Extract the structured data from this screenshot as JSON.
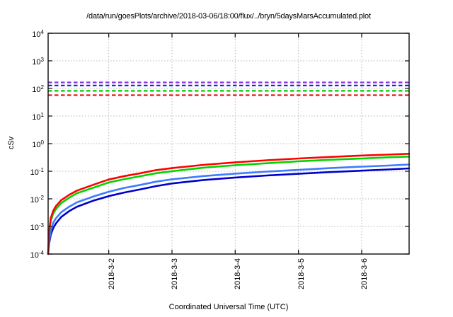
{
  "title": "/data/run/goesPlots/archive/2018-03-06/18:00/flux/../bryn/5daysMarsAccumulated.plot",
  "chart_data": {
    "type": "line",
    "title": "/data/run/goesPlots/archive/2018-03-06/18:00/flux/../bryn/5daysMarsAccumulated.plot",
    "xlabel": "Coordinated Universal Time (UTC)",
    "ylabel": "cSv",
    "x_unit": "hours since 2018-03-01 00:00 UTC",
    "x_range": [
      1,
      138
    ],
    "y_scale": "log10",
    "y_range": [
      0.0001,
      10000
    ],
    "grid": true,
    "legend": "none",
    "x_ticks": [
      {
        "t": 24,
        "label": "2018-3-2"
      },
      {
        "t": 48,
        "label": "2018-3-3"
      },
      {
        "t": 72,
        "label": "2018-3-4"
      },
      {
        "t": 96,
        "label": "2018-3-5"
      },
      {
        "t": 120,
        "label": "2018-3-6"
      }
    ],
    "y_ticks": [
      {
        "value": 10000,
        "base": "10",
        "exp": "4"
      },
      {
        "value": 1000,
        "base": "10",
        "exp": "3"
      },
      {
        "value": 100,
        "base": "10",
        "exp": "2"
      },
      {
        "value": 10,
        "base": "10",
        "exp": "1"
      },
      {
        "value": 1,
        "base": "10",
        "exp": "0"
      },
      {
        "value": 0.1,
        "base": "10",
        "exp": "-1"
      },
      {
        "value": 0.01,
        "base": "10",
        "exp": "-2"
      },
      {
        "value": 0.001,
        "base": "10",
        "exp": "-3"
      },
      {
        "value": 0.0001,
        "base": "10",
        "exp": "-4"
      }
    ],
    "reference_lines": [
      {
        "name": "limit-line-purple",
        "value": 165,
        "color": "#8833e0",
        "style": "dashed"
      },
      {
        "name": "limit-line-blue",
        "value": 128,
        "color": "#1a1aee",
        "style": "dashed"
      },
      {
        "name": "limit-line-green",
        "value": 82,
        "color": "#00cc00",
        "style": "dashed"
      },
      {
        "name": "limit-line-red",
        "value": 57,
        "color": "#ee1111",
        "style": "dashed"
      }
    ],
    "series": [
      {
        "name": "accumulated-dose-blue",
        "color": "#0000cc",
        "points": [
          [
            1,
            0.0001
          ],
          [
            1.4,
            0.00025
          ],
          [
            2,
            0.0005
          ],
          [
            3,
            0.0009
          ],
          [
            4,
            0.0013
          ],
          [
            6,
            0.0022
          ],
          [
            9,
            0.0036
          ],
          [
            12,
            0.0052
          ],
          [
            18,
            0.0085
          ],
          [
            24,
            0.0125
          ],
          [
            30,
            0.017
          ],
          [
            36,
            0.022
          ],
          [
            42,
            0.029
          ],
          [
            48,
            0.036
          ],
          [
            60,
            0.048
          ],
          [
            72,
            0.059
          ],
          [
            84,
            0.07
          ],
          [
            96,
            0.081
          ],
          [
            108,
            0.093
          ],
          [
            120,
            0.105
          ],
          [
            130,
            0.116
          ],
          [
            138,
            0.127
          ]
        ]
      },
      {
        "name": "accumulated-dose-lightblue",
        "color": "#3d7bff",
        "points": [
          [
            1,
            0.0001
          ],
          [
            1.4,
            0.0003
          ],
          [
            2,
            0.0007
          ],
          [
            3,
            0.0014
          ],
          [
            4,
            0.002
          ],
          [
            6,
            0.0033
          ],
          [
            9,
            0.0052
          ],
          [
            12,
            0.0075
          ],
          [
            18,
            0.012
          ],
          [
            24,
            0.018
          ],
          [
            30,
            0.025
          ],
          [
            36,
            0.032
          ],
          [
            42,
            0.042
          ],
          [
            48,
            0.051
          ],
          [
            60,
            0.067
          ],
          [
            72,
            0.082
          ],
          [
            84,
            0.097
          ],
          [
            96,
            0.112
          ],
          [
            108,
            0.13
          ],
          [
            120,
            0.147
          ],
          [
            130,
            0.16
          ],
          [
            138,
            0.175
          ]
        ]
      },
      {
        "name": "accumulated-dose-green",
        "color": "#00d400",
        "points": [
          [
            1,
            0.0001
          ],
          [
            1.4,
            0.0006
          ],
          [
            2,
            0.0016
          ],
          [
            3,
            0.003
          ],
          [
            4,
            0.0043
          ],
          [
            6,
            0.007
          ],
          [
            9,
            0.011
          ],
          [
            12,
            0.016
          ],
          [
            18,
            0.025
          ],
          [
            24,
            0.039
          ],
          [
            30,
            0.052
          ],
          [
            36,
            0.066
          ],
          [
            42,
            0.085
          ],
          [
            48,
            0.1
          ],
          [
            60,
            0.135
          ],
          [
            72,
            0.165
          ],
          [
            84,
            0.195
          ],
          [
            96,
            0.23
          ],
          [
            108,
            0.26
          ],
          [
            120,
            0.29
          ],
          [
            130,
            0.32
          ],
          [
            138,
            0.34
          ]
        ]
      },
      {
        "name": "accumulated-dose-red",
        "color": "#ff0000",
        "points": [
          [
            1,
            0.0001
          ],
          [
            1.4,
            0.0007
          ],
          [
            2,
            0.002
          ],
          [
            3,
            0.0038
          ],
          [
            4,
            0.0055
          ],
          [
            6,
            0.009
          ],
          [
            9,
            0.014
          ],
          [
            12,
            0.02
          ],
          [
            18,
            0.032
          ],
          [
            24,
            0.05
          ],
          [
            30,
            0.067
          ],
          [
            36,
            0.085
          ],
          [
            42,
            0.11
          ],
          [
            48,
            0.13
          ],
          [
            60,
            0.17
          ],
          [
            72,
            0.21
          ],
          [
            84,
            0.25
          ],
          [
            96,
            0.29
          ],
          [
            108,
            0.33
          ],
          [
            120,
            0.37
          ],
          [
            130,
            0.4
          ],
          [
            138,
            0.43
          ]
        ]
      }
    ],
    "style": {
      "border_color": "#1a1a1a",
      "grid_color": "#b8b8b8",
      "background": "#ffffff"
    }
  }
}
